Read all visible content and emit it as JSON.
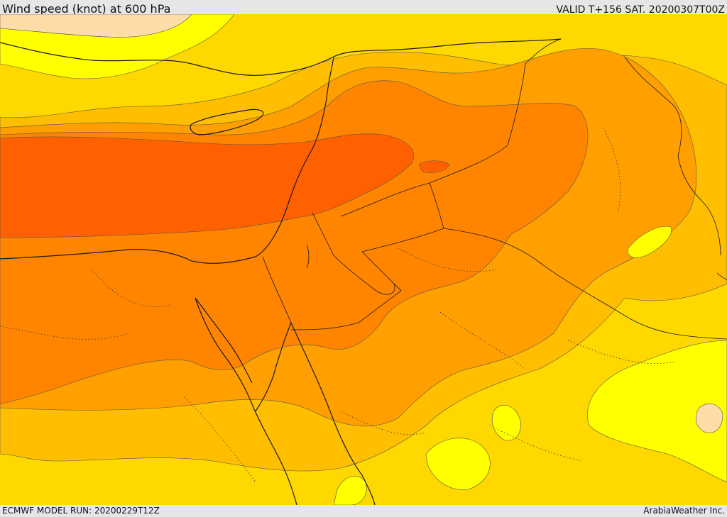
{
  "header": {
    "title": "Wind speed (knot) at 600 hPa",
    "valid": "VALID T+156 SAT. 20200307T00Z"
  },
  "footer": {
    "model_run": "ECMWF MODEL RUN: 20200229T12Z",
    "credit": "ArabiaWeather Inc."
  },
  "colors": {
    "pale": "#fddca8",
    "yellow": "#ffff00",
    "gold": "#ffd800",
    "amber": "#ffbf00",
    "orange": "#ff9f00",
    "dark_orange": "#ff8500",
    "red_orange": "#ff6000",
    "border": "#1a1a1a",
    "contour": "#555555"
  }
}
